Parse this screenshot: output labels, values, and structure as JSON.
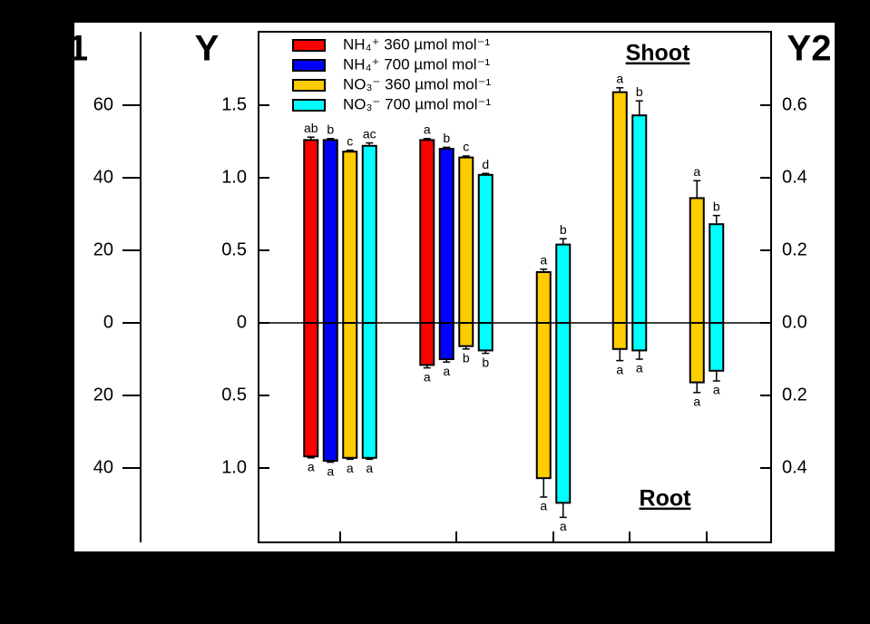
{
  "chart_data": {
    "type": "bar",
    "y1_label": "1",
    "y_label": "Y",
    "y2_label": "Y2",
    "top_annotation": "Shoot",
    "bottom_annotation": "Root",
    "categories": [
      null,
      null,
      null,
      null,
      null
    ],
    "ylim": [
      -1.5125,
      2.00625
    ],
    "yticks": [
      1.5,
      {
        "value": 1,
        "label": "1.0"
      },
      0.5,
      0,
      {
        "value": -0.5,
        "label": "0.5"
      },
      {
        "value": -1,
        "label": "1.0"
      }
    ],
    "y1lim": [
      -60.5,
      80.25
    ],
    "y1ticks": [
      60,
      40,
      20,
      0,
      {
        "value": -20,
        "label": "20"
      },
      {
        "value": -40,
        "label": "40"
      }
    ],
    "y2lim": [
      -0.605,
      0.8025
    ],
    "y2ticks": [
      0.6,
      0.4,
      0.2,
      {
        "value": 0,
        "label": "0.0"
      },
      {
        "value": -0.2,
        "label": "0.2"
      },
      {
        "value": -0.4,
        "label": "0.4"
      }
    ],
    "series": [
      {
        "name": "NH₄⁺ 360 µmol mol⁻¹",
        "color": "#ff0000",
        "values": [
          1.26,
          1.26,
          null,
          null,
          null
        ],
        "errors": [
          0.02,
          0.01,
          null,
          null,
          null
        ],
        "letters": [
          "ab",
          "a",
          null,
          null,
          null
        ],
        "root_values": [
          -0.92,
          -0.29,
          null,
          null,
          null
        ],
        "root_errors": [
          0.01,
          0.02,
          null,
          null,
          null
        ],
        "root_letters": [
          "a",
          "a",
          null,
          null,
          null
        ]
      },
      {
        "name": "NH₄⁺ 700 µmol mol⁻¹",
        "color": "#0000ff",
        "values": [
          1.26,
          1.2,
          null,
          null,
          null
        ],
        "errors": [
          0.01,
          0.01,
          null,
          null,
          null
        ],
        "letters": [
          "b",
          "b",
          null,
          null,
          null
        ],
        "root_values": [
          -0.95,
          -0.25,
          null,
          null,
          null
        ],
        "root_errors": [
          0.01,
          0.02,
          null,
          null,
          null
        ],
        "root_letters": [
          "a",
          "a",
          null,
          null,
          null
        ]
      },
      {
        "name": "NO₃⁻ 360 µmol mol⁻¹",
        "color": "#ffcc00",
        "values": [
          1.18,
          1.14,
          0.35,
          1.59,
          0.86
        ],
        "errors": [
          0.01,
          0.01,
          0.02,
          0.03,
          0.12
        ],
        "letters": [
          "c",
          "c",
          "a",
          "a",
          "a"
        ],
        "root_values": [
          -0.93,
          -0.16,
          -1.07,
          -0.18,
          -0.41
        ],
        "root_errors": [
          0.01,
          0.02,
          0.13,
          0.08,
          0.07
        ],
        "root_letters": [
          "a",
          "b",
          "a",
          "a",
          "a"
        ]
      },
      {
        "name": "NO₃⁻ 700 µmol mol⁻¹",
        "color": "#00ffff",
        "values": [
          1.22,
          1.02,
          0.54,
          1.43,
          0.68
        ],
        "errors": [
          0.02,
          0.01,
          0.04,
          0.1,
          0.06
        ],
        "letters": [
          "ac",
          "d",
          "b",
          "b",
          "b"
        ],
        "root_values": [
          -0.93,
          -0.19,
          -1.24,
          -0.19,
          -0.33
        ],
        "root_errors": [
          0.01,
          0.02,
          0.1,
          0.06,
          0.07
        ],
        "root_letters": [
          "a",
          "b",
          "a",
          "a",
          "a"
        ]
      }
    ]
  }
}
